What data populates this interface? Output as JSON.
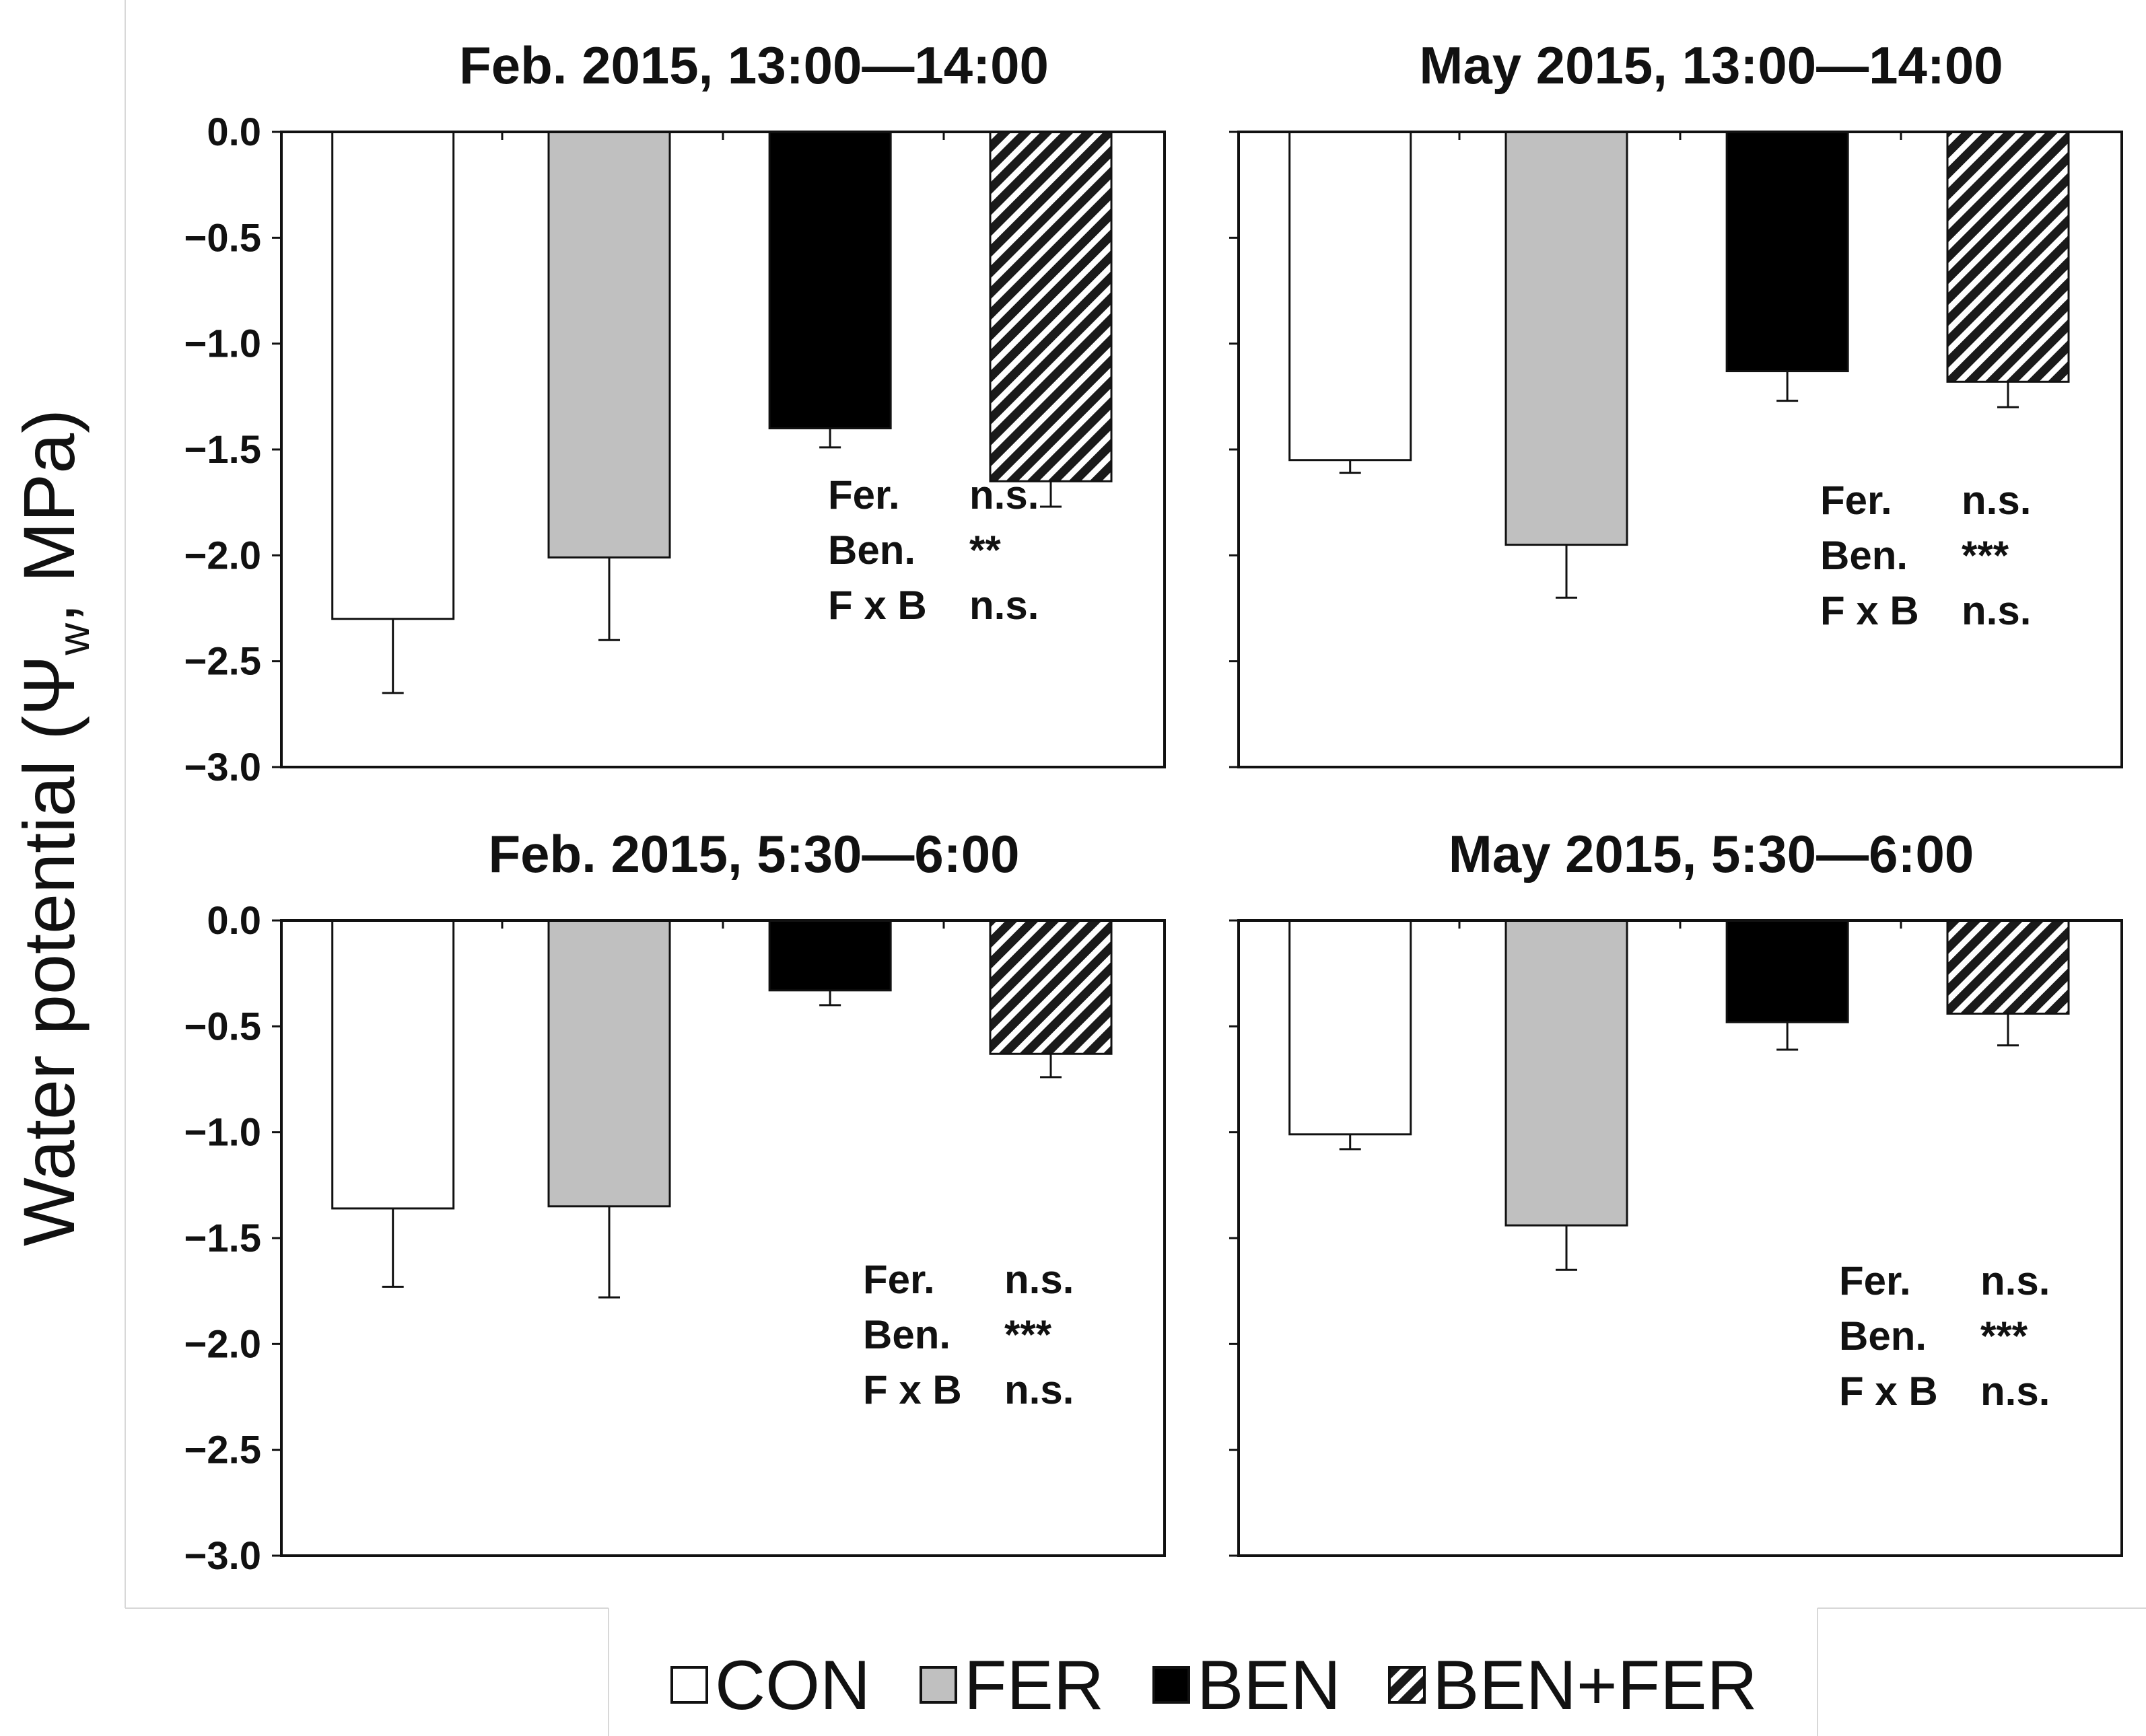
{
  "figure": {
    "ylabel_main": "Water potential (Ψ",
    "ylabel_sub": "w",
    "ylabel_tail": ", MPa)"
  },
  "legend": {
    "items": [
      {
        "label": "CON",
        "fill": "#ffffff"
      },
      {
        "label": "FER",
        "fill": "#c0c0c0"
      },
      {
        "label": "BEN",
        "fill": "#000000"
      },
      {
        "label": "BEN+FER",
        "fill": "hatch"
      }
    ]
  },
  "chart_data": [
    {
      "type": "bar",
      "title": "Feb. 2015, 13:00―14:00",
      "categories": [
        "CON",
        "FER",
        "BEN",
        "BEN+FER"
      ],
      "values": [
        -2.3,
        -2.01,
        -1.4,
        -1.65
      ],
      "errors": [
        0.35,
        0.39,
        0.09,
        0.12
      ],
      "ylim": [
        -3.0,
        0.0
      ],
      "yticks": [
        "0.0",
        "−0.5",
        "−1.0",
        "−1.5",
        "−2.0",
        "−2.5",
        "−3.0"
      ],
      "stats": [
        {
          "factor": "Fer.",
          "result": "n.s."
        },
        {
          "factor": "Ben.",
          "result": "**"
        },
        {
          "factor": "F x B",
          "result": "n.s."
        }
      ]
    },
    {
      "type": "bar",
      "title": "May 2015, 13:00―14:00",
      "categories": [
        "CON",
        "FER",
        "BEN",
        "BEN+FER"
      ],
      "values": [
        -1.55,
        -1.95,
        -1.13,
        -1.18
      ],
      "errors": [
        0.06,
        0.25,
        0.14,
        0.12
      ],
      "ylim": [
        -3.0,
        0.0
      ],
      "yticks": [
        "0.0",
        "−0.5",
        "−1.0",
        "−1.5",
        "−2.0",
        "−2.5",
        "−3.0"
      ],
      "stats": [
        {
          "factor": "Fer.",
          "result": "n.s."
        },
        {
          "factor": "Ben.",
          "result": "***"
        },
        {
          "factor": "F x B",
          "result": "n.s."
        }
      ]
    },
    {
      "type": "bar",
      "title": "Feb. 2015, 5:30―6:00",
      "categories": [
        "CON",
        "FER",
        "BEN",
        "BEN+FER"
      ],
      "values": [
        -1.36,
        -1.35,
        -0.33,
        -0.63
      ],
      "errors": [
        0.37,
        0.43,
        0.07,
        0.11
      ],
      "ylim": [
        -3.0,
        0.0
      ],
      "yticks": [
        "0.0",
        "−0.5",
        "−1.0",
        "−1.5",
        "−2.0",
        "−2.5",
        "−3.0"
      ],
      "stats": [
        {
          "factor": "Fer.",
          "result": "n.s."
        },
        {
          "factor": "Ben.",
          "result": "***"
        },
        {
          "factor": "F x B",
          "result": "n.s."
        }
      ]
    },
    {
      "type": "bar",
      "title": "May 2015, 5:30―6:00",
      "categories": [
        "CON",
        "FER",
        "BEN",
        "BEN+FER"
      ],
      "values": [
        -1.01,
        -1.44,
        -0.48,
        -0.44
      ],
      "errors": [
        0.07,
        0.21,
        0.13,
        0.15
      ],
      "ylim": [
        -3.0,
        0.0
      ],
      "yticks": [
        "0.0",
        "−0.5",
        "−1.0",
        "−1.5",
        "−2.0",
        "−2.5",
        "−3.0"
      ],
      "stats": [
        {
          "factor": "Fer.",
          "result": "n.s."
        },
        {
          "factor": "Ben.",
          "result": "***"
        },
        {
          "factor": "F x B",
          "result": "n.s."
        }
      ]
    }
  ]
}
